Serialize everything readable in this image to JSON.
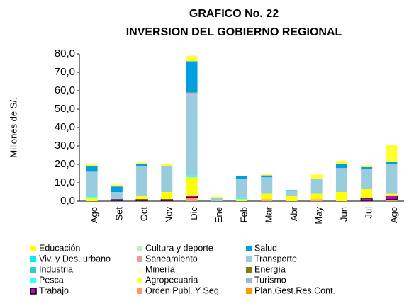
{
  "chart_data": {
    "type": "stacked_bar",
    "title": "GRAFICO No. 22",
    "subtitle": "INVERSION DEL GOBIERNO REGIONAL",
    "y_label": "Millones de S/.",
    "categories": [
      "Ago",
      "Set",
      "Oct",
      "Nov",
      "Dic",
      "Ene",
      "Feb",
      "Mar",
      "Abr",
      "May",
      "Jun",
      "Jul",
      "Ago"
    ],
    "ylim": [
      0,
      80
    ],
    "yticks": [
      {
        "value": 0,
        "label": "0,0"
      },
      {
        "value": 10,
        "label": "10,0"
      },
      {
        "value": 20,
        "label": "20,0"
      },
      {
        "value": 30,
        "label": "30,0"
      },
      {
        "value": 40,
        "label": "40,0"
      },
      {
        "value": 50,
        "label": "50,0"
      },
      {
        "value": 60,
        "label": "60,0"
      },
      {
        "value": 70,
        "label": "70,0"
      },
      {
        "value": 80,
        "label": "80,0"
      }
    ],
    "series": [
      {
        "name": "Educación",
        "color": "#ffff00",
        "values": [
          2,
          0,
          2,
          4,
          10,
          0,
          1,
          3,
          3,
          3,
          5,
          5,
          1
        ]
      },
      {
        "name": "Cultura y deporte",
        "color": "#c8e6c8",
        "values": [
          0,
          0,
          0,
          0,
          0,
          0,
          0,
          0,
          0,
          0,
          0,
          0,
          0
        ]
      },
      {
        "name": "Salud",
        "color": "#00a0e0",
        "values": [
          3,
          3,
          1,
          0,
          17,
          0,
          1.5,
          1,
          0.5,
          0,
          2,
          1,
          1.5
        ]
      },
      {
        "name": "Viv. y Des. urbano",
        "color": "#00f0f0",
        "values": [
          0,
          0,
          0,
          0,
          0,
          0,
          0,
          0,
          0,
          0,
          0,
          0,
          0
        ]
      },
      {
        "name": "Saneamiento",
        "color": "#e0a0a0",
        "values": [
          0,
          0,
          0,
          0,
          1,
          0,
          0,
          0,
          0,
          0,
          0,
          0,
          0
        ]
      },
      {
        "name": "Transporte",
        "color": "#99ccdd",
        "values": [
          13,
          4,
          16,
          14,
          44,
          2,
          10,
          9,
          2.5,
          8,
          13,
          11,
          16
        ]
      },
      {
        "name": "Industria",
        "color": "#33cccc",
        "values": [
          0,
          0,
          0,
          0,
          0,
          0,
          0,
          0,
          0,
          0,
          0,
          0,
          0
        ]
      },
      {
        "name": "Minería",
        "color": "#ffffe0",
        "values": [
          0,
          0,
          0,
          0,
          0,
          0,
          0,
          0,
          0,
          0,
          0,
          0,
          0
        ]
      },
      {
        "name": "Energía",
        "color": "#808000",
        "values": [
          0,
          0,
          0,
          0,
          0,
          0,
          0,
          0,
          0,
          0,
          0,
          0,
          0
        ]
      },
      {
        "name": "Pesca",
        "color": "#33ffff",
        "values": [
          1,
          0,
          0,
          0,
          1,
          0,
          1,
          0,
          0,
          0,
          0,
          0,
          0
        ]
      },
      {
        "name": "Agropecuaria",
        "color": "#ffff33",
        "values": [
          1,
          1,
          1,
          1,
          3,
          0.5,
          0,
          0.5,
          0,
          2.5,
          2,
          1,
          9
        ]
      },
      {
        "name": "Turismo",
        "color": "#a0b4e0",
        "values": [
          0,
          0,
          0,
          0,
          0,
          0,
          0,
          0,
          0,
          0,
          0,
          0,
          0
        ]
      },
      {
        "name": "Trabajo",
        "color": "#cc00cc",
        "values": [
          0,
          1,
          1,
          1,
          1,
          0,
          0,
          0,
          0,
          0,
          0,
          1.5,
          2
        ]
      },
      {
        "name": "Orden Publ. Y Seg.",
        "color": "#ff9966",
        "values": [
          0,
          0,
          0,
          0,
          2,
          0,
          0,
          1,
          0,
          1,
          0,
          0,
          1
        ]
      },
      {
        "name": "Plan.Gest.Res.Cont.",
        "color": "#ff9900",
        "values": [
          0,
          0,
          0,
          0,
          0,
          0,
          0,
          0,
          0,
          0,
          0,
          0,
          0
        ]
      }
    ]
  }
}
